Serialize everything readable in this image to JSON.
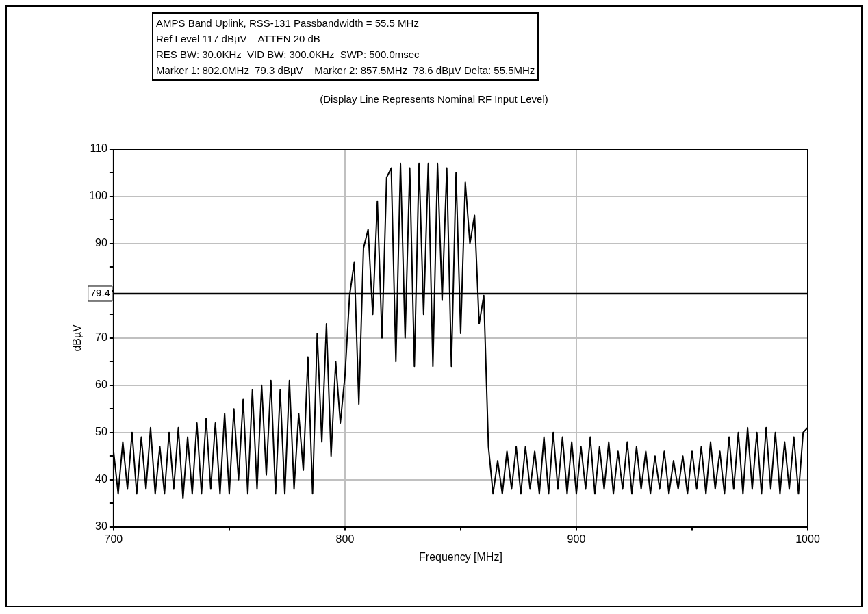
{
  "chart_data": {
    "type": "line",
    "title": "AMPS Band Uplink, RSS-131 Passbandwidth = 55.5 MHz",
    "annotations": [
      "Ref Level 117 dBµV    ATTEN 20 dB",
      "RES BW: 30.0KHz  VID BW: 300.0KHz  SWP: 500.0msec",
      "Marker 1: 802.0MHz  79.3 dBµV    Marker 2: 857.5MHz  78.6 dBµV Delta: 55.5MHz"
    ],
    "subtitle": "(Display Line Represents Nominal RF Input Level)",
    "xlabel": "Frequency [MHz]",
    "ylabel": "dBµV",
    "x": [
      700,
      702,
      704,
      706,
      708,
      710,
      712,
      714,
      716,
      718,
      720,
      722,
      724,
      726,
      728,
      730,
      732,
      734,
      736,
      738,
      740,
      742,
      744,
      746,
      748,
      750,
      752,
      754,
      756,
      758,
      760,
      762,
      764,
      766,
      768,
      770,
      772,
      774,
      776,
      778,
      780,
      782,
      784,
      786,
      788,
      790,
      792,
      794,
      796,
      798,
      800,
      802,
      804,
      806,
      808,
      810,
      812,
      814,
      816,
      818,
      820,
      822,
      824,
      826,
      828,
      830,
      832,
      834,
      836,
      838,
      840,
      842,
      844,
      846,
      848,
      850,
      852,
      854,
      856,
      858,
      860,
      862,
      864,
      866,
      868,
      870,
      872,
      874,
      876,
      878,
      880,
      882,
      884,
      886,
      888,
      890,
      892,
      894,
      896,
      898,
      900,
      902,
      904,
      906,
      908,
      910,
      912,
      914,
      916,
      918,
      920,
      922,
      924,
      926,
      928,
      930,
      932,
      934,
      936,
      938,
      940,
      942,
      944,
      946,
      948,
      950,
      952,
      954,
      956,
      958,
      960,
      962,
      964,
      966,
      968,
      970,
      972,
      974,
      976,
      978,
      980,
      982,
      984,
      986,
      988,
      990,
      992,
      994,
      996,
      998,
      1000
    ],
    "series": [
      {
        "color": "#000000",
        "values": [
          46,
          37,
          48,
          38,
          50,
          37,
          49,
          38,
          51,
          37,
          47,
          37,
          50,
          38,
          51,
          36,
          49,
          37,
          52,
          37,
          53,
          38,
          52,
          37,
          54,
          37,
          55,
          40,
          57,
          37,
          59,
          38,
          60,
          41,
          61,
          37,
          59,
          37,
          61,
          38,
          54,
          42,
          66,
          37,
          71,
          48,
          73,
          45,
          65,
          52,
          62,
          79,
          86,
          56,
          89,
          93,
          75,
          99,
          70,
          104,
          106,
          65,
          107,
          70,
          106,
          64,
          107,
          75,
          107,
          64,
          107,
          78,
          106,
          64,
          105,
          71,
          103,
          90,
          96,
          73,
          79,
          47,
          37,
          44,
          37,
          46,
          38,
          47,
          37,
          47,
          38,
          46,
          37,
          49,
          37,
          50,
          38,
          49,
          37,
          48,
          37,
          47,
          38,
          49,
          37,
          47,
          38,
          48,
          37,
          46,
          38,
          48,
          37,
          47,
          38,
          46,
          37,
          45,
          38,
          46,
          37,
          44,
          38,
          45,
          37,
          46,
          38,
          47,
          37,
          48,
          38,
          46,
          37,
          49,
          38,
          50,
          37,
          51,
          38,
          50,
          37,
          51,
          38,
          50,
          37,
          48,
          38,
          49,
          37,
          50,
          51
        ]
      }
    ],
    "xlim": [
      700,
      1000
    ],
    "xticks": [
      700,
      {
        "value": 750,
        "label": null
      },
      800,
      {
        "value": 850,
        "label": null
      },
      900,
      {
        "value": 950,
        "label": null
      },
      1000
    ],
    "ylim": [
      30,
      110
    ],
    "yticks": [
      30,
      {
        "value": 35,
        "label": null
      },
      40,
      {
        "value": 45,
        "label": null
      },
      50,
      {
        "value": 55,
        "label": null
      },
      60,
      {
        "value": 65,
        "label": null
      },
      70,
      {
        "value": 75,
        "label": null
      },
      {
        "value": 80,
        "label": null
      },
      {
        "value": 85,
        "label": null
      },
      90,
      {
        "value": 95,
        "label": null
      },
      100,
      {
        "value": 105,
        "label": null
      },
      110
    ],
    "grid": true,
    "legend": false,
    "marker": "none",
    "line_style": "solid",
    "ref_lines": [
      {
        "axis": "y",
        "value": 79.4,
        "label": "79.4",
        "color": "#000000"
      }
    ]
  }
}
